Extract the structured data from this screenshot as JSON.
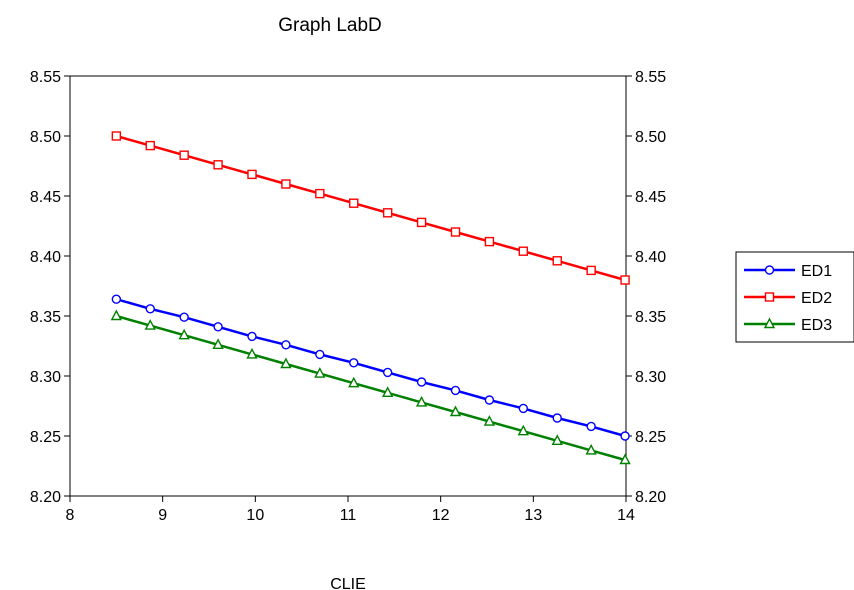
{
  "chart_data": {
    "type": "line",
    "title": "Graph LabD",
    "xlabel": "CLIE",
    "ylabel": "",
    "xlim": [
      8,
      14
    ],
    "ylim": [
      8.2,
      8.55
    ],
    "x_ticks": [
      "8",
      "9",
      "10",
      "11",
      "12",
      "13",
      "14"
    ],
    "y_ticks": [
      "8.20",
      "8.25",
      "8.30",
      "8.35",
      "8.40",
      "8.45",
      "8.50",
      "8.55"
    ],
    "x": [
      8.5,
      8.866,
      9.232,
      9.598,
      9.964,
      10.33,
      10.696,
      11.062,
      11.428,
      11.794,
      12.16,
      12.526,
      12.892,
      13.258,
      13.624,
      13.99
    ],
    "legend_position": "right",
    "grid": false,
    "series": [
      {
        "name": "ED1",
        "color": "#0000ff",
        "marker": "circle",
        "values": [
          8.364,
          8.356,
          8.349,
          8.341,
          8.333,
          8.326,
          8.318,
          8.311,
          8.303,
          8.295,
          8.288,
          8.28,
          8.273,
          8.265,
          8.258,
          8.25
        ]
      },
      {
        "name": "ED2",
        "color": "#ff0000",
        "marker": "square",
        "values": [
          8.5,
          8.492,
          8.484,
          8.476,
          8.468,
          8.46,
          8.452,
          8.444,
          8.436,
          8.428,
          8.42,
          8.412,
          8.404,
          8.396,
          8.388,
          8.38
        ]
      },
      {
        "name": "ED3",
        "color": "#008000",
        "marker": "triangle",
        "values": [
          8.35,
          8.342,
          8.334,
          8.326,
          8.318,
          8.31,
          8.302,
          8.294,
          8.286,
          8.278,
          8.27,
          8.262,
          8.254,
          8.246,
          8.238,
          8.23
        ]
      }
    ]
  }
}
